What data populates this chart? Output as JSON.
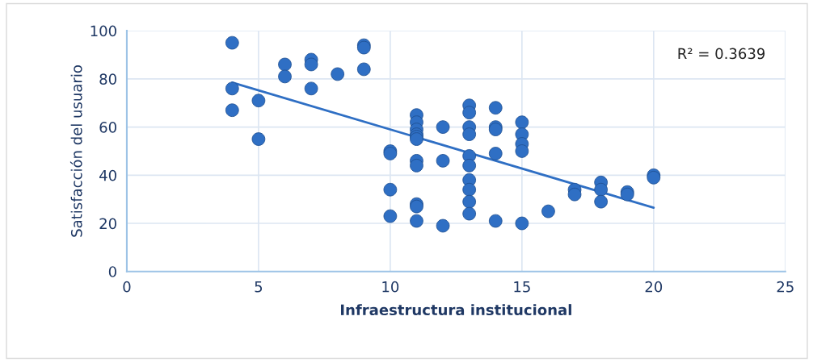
{
  "chart_data": {
    "type": "scatter",
    "xlabel": "Infraestructura institucional",
    "ylabel": "Satisfacción del usuario",
    "xlim": [
      0,
      25
    ],
    "xticks": [
      0,
      5,
      10,
      15,
      20,
      25
    ],
    "ylim": [
      0,
      100
    ],
    "yticks": [
      0,
      20,
      40,
      60,
      80,
      100
    ],
    "grid": true,
    "annotations": [
      "R² = 0.3639"
    ],
    "series": [
      {
        "marker": "circle",
        "color": "#2f6fc4",
        "x": [
          4,
          4,
          4,
          5,
          5,
          6,
          6,
          7,
          7,
          7,
          8,
          9,
          9,
          9,
          10,
          10,
          10,
          10,
          11,
          11,
          11,
          11,
          11,
          11,
          11,
          11,
          11,
          11,
          11,
          12,
          12,
          12,
          13,
          13,
          13,
          13,
          13,
          13,
          13,
          13,
          13,
          13,
          14,
          14,
          14,
          14,
          14,
          15,
          15,
          15,
          15,
          15,
          16,
          17,
          17,
          18,
          18,
          18,
          19,
          19,
          20,
          20
        ],
        "values": [
          95,
          76,
          67,
          71,
          55,
          86,
          81,
          88,
          86,
          76,
          82,
          94,
          93,
          84,
          50,
          49,
          34,
          23,
          65,
          62,
          59,
          57,
          56,
          55,
          46,
          44,
          28,
          27,
          21,
          60,
          46,
          19,
          69,
          66,
          60,
          57,
          48,
          44,
          38,
          34,
          29,
          24,
          68,
          60,
          59,
          49,
          21,
          62,
          57,
          53,
          50,
          20,
          25,
          34,
          32,
          37,
          34,
          29,
          33,
          32,
          40,
          39
        ]
      },
      {
        "type": "line",
        "marker": "none",
        "color": "#2f6fc4",
        "x": [
          4,
          20
        ],
        "values": [
          78.5,
          26.5
        ]
      }
    ]
  }
}
